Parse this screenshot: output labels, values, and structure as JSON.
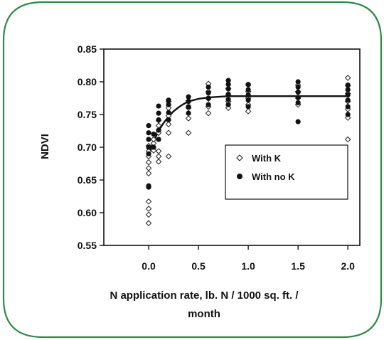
{
  "frame_color": "#2f8a4a",
  "chart_data": {
    "type": "scatter",
    "title": "",
    "xlabel_lines": [
      "N application rate, lb. N / 1000 sq. ft. /",
      "month"
    ],
    "ylabel": "NDVI",
    "xlim": [
      -0.45,
      2.12
    ],
    "ylim": [
      0.55,
      0.85
    ],
    "xticks": [
      0.0,
      0.5,
      1.0,
      1.5,
      2.0
    ],
    "xtick_labels": [
      "0.0",
      "0.5",
      "1.0",
      "1.5",
      "2.0"
    ],
    "yticks": [
      0.55,
      0.6,
      0.65,
      0.7,
      0.75,
      0.8,
      0.85
    ],
    "ytick_labels": [
      "0.55",
      "0.60",
      "0.65",
      "0.70",
      "0.75",
      "0.80",
      "0.85"
    ],
    "legend_position": "center-right",
    "series": [
      {
        "name": "With K",
        "marker": "open-diamond",
        "points": [
          [
            0.0,
            0.584
          ],
          [
            0.0,
            0.597
          ],
          [
            0.0,
            0.606
          ],
          [
            0.0,
            0.617
          ],
          [
            0.0,
            0.66
          ],
          [
            0.0,
            0.668
          ],
          [
            0.0,
            0.677
          ],
          [
            0.0,
            0.686
          ],
          [
            0.0,
            0.694
          ],
          [
            0.0,
            0.702
          ],
          [
            0.05,
            0.695
          ],
          [
            0.05,
            0.706
          ],
          [
            0.05,
            0.712
          ],
          [
            0.1,
            0.678
          ],
          [
            0.1,
            0.686
          ],
          [
            0.1,
            0.694
          ],
          [
            0.1,
            0.722
          ],
          [
            0.1,
            0.733
          ],
          [
            0.1,
            0.741
          ],
          [
            0.2,
            0.686
          ],
          [
            0.2,
            0.722
          ],
          [
            0.2,
            0.735
          ],
          [
            0.2,
            0.748
          ],
          [
            0.2,
            0.76
          ],
          [
            0.2,
            0.77
          ],
          [
            0.4,
            0.722
          ],
          [
            0.4,
            0.744
          ],
          [
            0.4,
            0.76
          ],
          [
            0.4,
            0.771
          ],
          [
            0.6,
            0.752
          ],
          [
            0.6,
            0.762
          ],
          [
            0.6,
            0.774
          ],
          [
            0.6,
            0.785
          ],
          [
            0.6,
            0.797
          ],
          [
            0.8,
            0.76
          ],
          [
            0.8,
            0.77
          ],
          [
            0.8,
            0.78
          ],
          [
            0.8,
            0.79
          ],
          [
            1.0,
            0.755
          ],
          [
            1.0,
            0.765
          ],
          [
            1.0,
            0.775
          ],
          [
            1.0,
            0.785
          ],
          [
            1.0,
            0.795
          ],
          [
            1.5,
            0.765
          ],
          [
            1.5,
            0.775
          ],
          [
            1.5,
            0.785
          ],
          [
            1.5,
            0.795
          ],
          [
            2.0,
            0.712
          ],
          [
            2.0,
            0.745
          ],
          [
            2.0,
            0.758
          ],
          [
            2.0,
            0.77
          ],
          [
            2.0,
            0.782
          ],
          [
            2.0,
            0.794
          ],
          [
            2.0,
            0.806
          ]
        ]
      },
      {
        "name": "With no K",
        "marker": "filled-circle",
        "points": [
          [
            0.0,
            0.639
          ],
          [
            0.0,
            0.641
          ],
          [
            0.0,
            0.69
          ],
          [
            0.0,
            0.7
          ],
          [
            0.0,
            0.712
          ],
          [
            0.0,
            0.722
          ],
          [
            0.0,
            0.733
          ],
          [
            0.05,
            0.7
          ],
          [
            0.05,
            0.72
          ],
          [
            0.1,
            0.712
          ],
          [
            0.1,
            0.726
          ],
          [
            0.1,
            0.742
          ],
          [
            0.1,
            0.752
          ],
          [
            0.1,
            0.763
          ],
          [
            0.2,
            0.742
          ],
          [
            0.2,
            0.753
          ],
          [
            0.2,
            0.765
          ],
          [
            0.2,
            0.772
          ],
          [
            0.4,
            0.752
          ],
          [
            0.4,
            0.762
          ],
          [
            0.4,
            0.77
          ],
          [
            0.4,
            0.777
          ],
          [
            0.6,
            0.765
          ],
          [
            0.6,
            0.775
          ],
          [
            0.6,
            0.783
          ],
          [
            0.6,
            0.792
          ],
          [
            0.8,
            0.765
          ],
          [
            0.8,
            0.773
          ],
          [
            0.8,
            0.781
          ],
          [
            0.8,
            0.789
          ],
          [
            0.8,
            0.796
          ],
          [
            0.8,
            0.802
          ],
          [
            1.0,
            0.762
          ],
          [
            1.0,
            0.772
          ],
          [
            1.0,
            0.78
          ],
          [
            1.0,
            0.788
          ],
          [
            1.0,
            0.796
          ],
          [
            1.5,
            0.739
          ],
          [
            1.5,
            0.768
          ],
          [
            1.5,
            0.776
          ],
          [
            1.5,
            0.784
          ],
          [
            1.5,
            0.792
          ],
          [
            1.5,
            0.8
          ],
          [
            2.0,
            0.75
          ],
          [
            2.0,
            0.762
          ],
          [
            2.0,
            0.772
          ],
          [
            2.0,
            0.78
          ],
          [
            2.0,
            0.788
          ],
          [
            2.0,
            0.795
          ]
        ]
      }
    ],
    "fit_curve": {
      "form": "exponential-plateau",
      "points": [
        [
          0.0,
          0.69
        ],
        [
          0.05,
          0.709
        ],
        [
          0.1,
          0.725
        ],
        [
          0.15,
          0.737
        ],
        [
          0.2,
          0.747
        ],
        [
          0.25,
          0.755
        ],
        [
          0.3,
          0.761
        ],
        [
          0.35,
          0.766
        ],
        [
          0.4,
          0.77
        ],
        [
          0.45,
          0.772
        ],
        [
          0.5,
          0.774
        ],
        [
          0.6,
          0.776
        ],
        [
          0.8,
          0.778
        ],
        [
          1.0,
          0.778
        ],
        [
          1.5,
          0.778
        ],
        [
          2.0,
          0.778
        ]
      ]
    }
  }
}
